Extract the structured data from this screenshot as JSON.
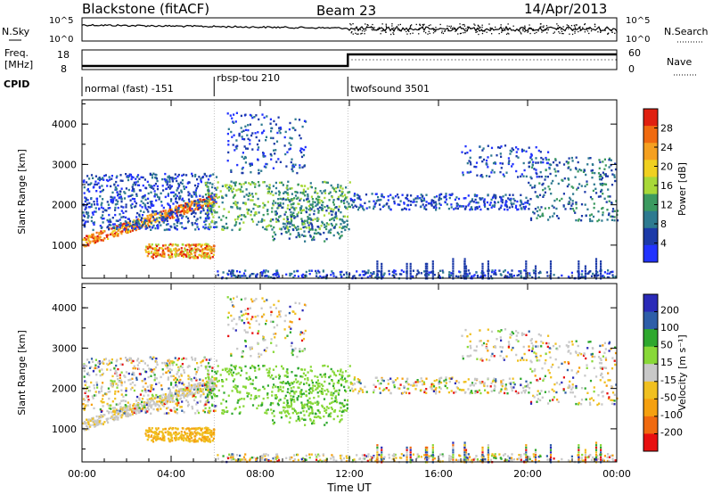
{
  "header": {
    "radar": "Blackstone (fitACF)",
    "beam": "Beam 23",
    "date": "14/Apr/2013"
  },
  "top_panels": {
    "nsky_label": "N.Sky",
    "nsky_ticks": [
      "10^5",
      "10^0"
    ],
    "nsearch_label": "N.Search",
    "nsearch_ticks": [
      "10^5",
      "10^0"
    ],
    "freq_label": "Freq.",
    "freq_unit": "[MHz]",
    "freq_ticks": [
      "18",
      "8"
    ],
    "nave_label": "Nave",
    "nave_ticks": [
      "60",
      "0"
    ],
    "cpid_label": "CPID",
    "cpid_segments": [
      {
        "label": "normal (fast) -151",
        "start_h": 0,
        "end_h": 5.93
      },
      {
        "label": "rbsp-tou 210",
        "start_h": 5.93,
        "end_h": 11.93
      },
      {
        "label": "twofsound 3501",
        "start_h": 11.93,
        "end_h": 24
      }
    ]
  },
  "chart_data": [
    {
      "type": "heatmap",
      "name": "power",
      "ylabel": "Slant Range [km]",
      "ylim": [
        180,
        4600
      ],
      "yticks": [
        "1000",
        "2000",
        "3000",
        "4000"
      ],
      "colorbar_label": "Power [dB]",
      "colorbar_ticks": [
        "4",
        "8",
        "12",
        "16",
        "20",
        "24",
        "28"
      ],
      "colorbar_colors": [
        "#2233ff",
        "#1c3aa8",
        "#2e7a90",
        "#3c9a60",
        "#a8d838",
        "#f0d020",
        "#f5a020",
        "#f06a10",
        "#e02010"
      ]
    },
    {
      "type": "heatmap",
      "name": "velocity",
      "ylabel": "Slant Range [km]",
      "ylim": [
        180,
        4600
      ],
      "yticks": [
        "1000",
        "2000",
        "3000",
        "4000"
      ],
      "colorbar_label": "Velocity [m s⁻¹]",
      "colorbar_ticks": [
        "200",
        "100",
        "50",
        "15",
        "-15",
        "-50",
        "-100",
        "-200"
      ],
      "colorbar_colors": [
        "#2a2ab8",
        "#2e5ea8",
        "#2ea82e",
        "#88d838",
        "#c8c8c8",
        "#f0c020",
        "#f5a010",
        "#f06a10",
        "#e81010"
      ]
    }
  ],
  "xaxis": {
    "label": "Time UT",
    "xlim": [
      0,
      24
    ],
    "ticks": [
      "00:00",
      "04:00",
      "08:00",
      "12:00",
      "16:00",
      "20:00",
      "00:00"
    ]
  }
}
